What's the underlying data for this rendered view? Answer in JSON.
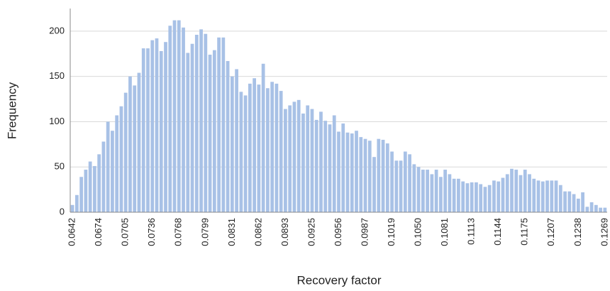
{
  "chart_data": {
    "type": "bar",
    "x_label": "Recovery factor",
    "y_label": "Frequency",
    "color": "#a8c1e6",
    "grid": true,
    "ylim": [
      0,
      225
    ],
    "yticks": [
      0,
      50,
      100,
      150,
      200
    ],
    "categories": [
      "0.0642",
      null,
      null,
      null,
      null,
      null,
      "0.0674",
      null,
      null,
      null,
      null,
      null,
      "0.0705",
      null,
      null,
      null,
      null,
      null,
      "0.0736",
      null,
      null,
      null,
      null,
      null,
      "0.0768",
      null,
      null,
      null,
      null,
      null,
      "0.0799",
      null,
      null,
      null,
      null,
      null,
      "0.0831",
      null,
      null,
      null,
      null,
      null,
      "0.0862",
      null,
      null,
      null,
      null,
      null,
      "0.0893",
      null,
      null,
      null,
      null,
      null,
      "0.0925",
      null,
      null,
      null,
      null,
      null,
      "0.0956",
      null,
      null,
      null,
      null,
      null,
      "0.0987",
      null,
      null,
      null,
      null,
      null,
      "0.1019",
      null,
      null,
      null,
      null,
      null,
      "0.1050",
      null,
      null,
      null,
      null,
      null,
      "0.1081",
      null,
      null,
      null,
      null,
      null,
      "0.1113",
      null,
      null,
      null,
      null,
      null,
      "0.1144",
      null,
      null,
      null,
      null,
      null,
      "0.1175",
      null,
      null,
      null,
      null,
      null,
      "0.1207",
      null,
      null,
      null,
      null,
      null,
      "0.1238",
      null,
      null,
      null,
      null,
      null,
      "0.1269"
    ],
    "values": [
      8,
      19,
      39,
      47,
      56,
      51,
      64,
      78,
      100,
      90,
      107,
      117,
      132,
      150,
      140,
      154,
      181,
      181,
      190,
      192,
      178,
      188,
      206,
      212,
      212,
      204,
      176,
      186,
      196,
      202,
      197,
      174,
      179,
      193,
      193,
      167,
      150,
      158,
      133,
      129,
      142,
      148,
      141,
      164,
      137,
      144,
      142,
      134,
      114,
      118,
      122,
      124,
      109,
      118,
      114,
      102,
      111,
      101,
      97,
      107,
      89,
      98,
      88,
      87,
      90,
      83,
      81,
      79,
      61,
      81,
      80,
      76,
      67,
      57,
      57,
      67,
      64,
      53,
      50,
      47,
      47,
      42,
      47,
      39,
      47,
      42,
      37,
      37,
      34,
      32,
      33,
      33,
      31,
      28,
      30,
      35,
      34,
      38,
      42,
      48,
      47,
      41,
      47,
      42,
      37,
      35,
      34,
      35,
      35,
      35,
      30,
      23,
      23,
      20,
      15,
      22,
      6,
      11,
      8,
      5,
      5
    ]
  }
}
